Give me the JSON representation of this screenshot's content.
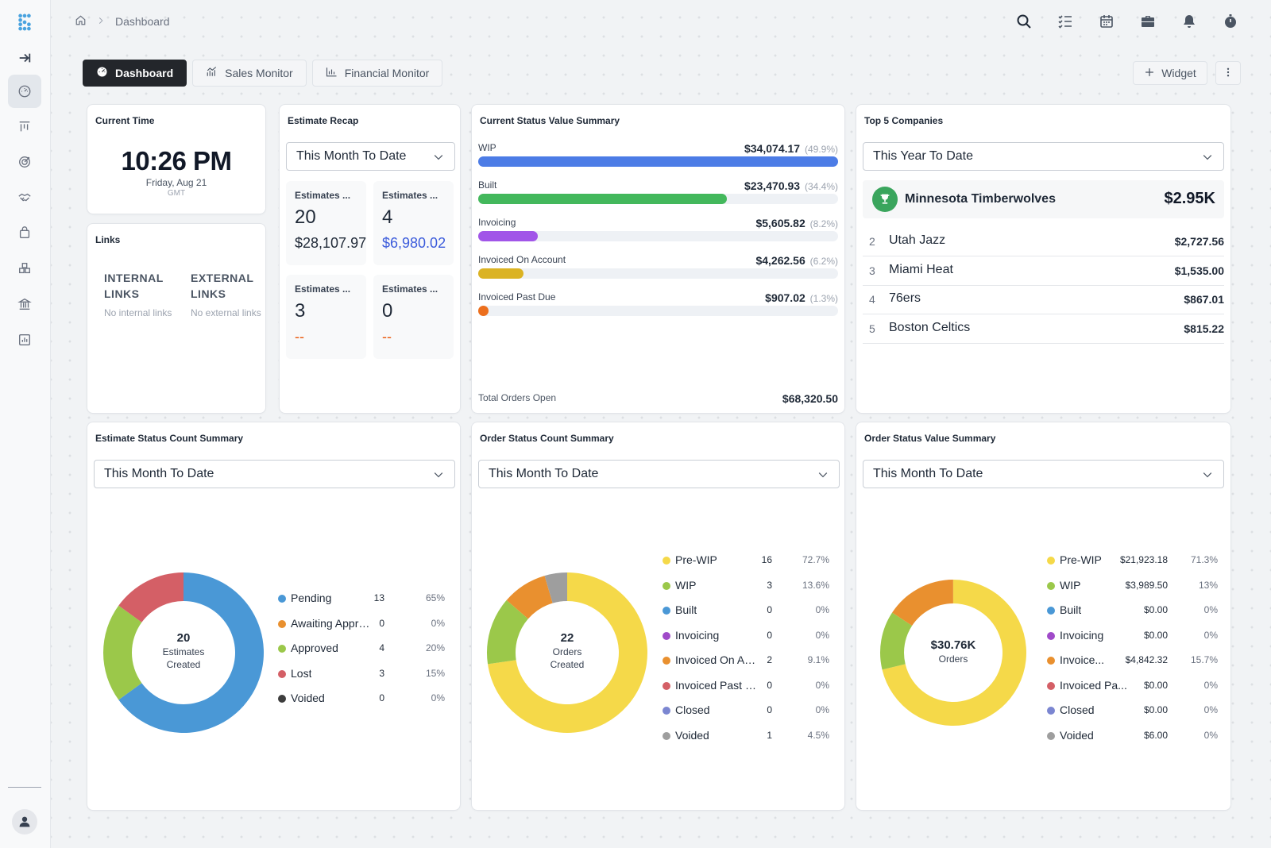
{
  "breadcrumb": {
    "page": "Dashboard"
  },
  "tabs": [
    {
      "label": "Dashboard",
      "icon": "dashboard-icon",
      "active": true
    },
    {
      "label": "Sales Monitor",
      "icon": "sales-chart-icon"
    },
    {
      "label": "Financial Monitor",
      "icon": "bar-chart-icon"
    }
  ],
  "actions": {
    "add_widget": "Widget"
  },
  "current_time": {
    "title": "Current Time",
    "time": "10:26 PM",
    "date": "Friday, Aug 21",
    "tz": "GMT"
  },
  "links": {
    "title": "Links",
    "internal_head": "INTERNAL LINKS",
    "internal_empty": "No internal links",
    "external_head": "EXTERNAL LINKS",
    "external_empty": "No external links"
  },
  "estimate_recap": {
    "title": "Estimate Recap",
    "period": "This Month To Date",
    "boxes": [
      {
        "label": "Estimates ...",
        "count": "20",
        "value": "$28,107.97"
      },
      {
        "label": "Estimates ...",
        "count": "4",
        "value": "$6,980.02"
      },
      {
        "label": "Estimates ...",
        "count": "3",
        "value": "--"
      },
      {
        "label": "Estimates ...",
        "count": "0",
        "value": "--"
      }
    ]
  },
  "status_value": {
    "title": "Current Status Value Summary",
    "rows": [
      {
        "label": "WIP",
        "amount": "$34,074.17",
        "pct": "(49.9%)",
        "fraction": 1.0,
        "color": "#4c7ce6"
      },
      {
        "label": "Built",
        "amount": "$23,470.93",
        "pct": "(34.4%)",
        "fraction": 0.69,
        "color": "#43b85c"
      },
      {
        "label": "Invoicing",
        "amount": "$5,605.82",
        "pct": "(8.2%)",
        "fraction": 0.165,
        "color": "#a155e8"
      },
      {
        "label": "Invoiced On Account",
        "amount": "$4,262.56",
        "pct": "(6.2%)",
        "fraction": 0.125,
        "color": "#dbb323"
      },
      {
        "label": "Invoiced Past Due",
        "amount": "$907.02",
        "pct": "(1.3%)",
        "fraction": 0.026,
        "color": "#ec6f1d"
      }
    ],
    "total_label": "Total Orders Open",
    "total_amount": "$68,320.50"
  },
  "top_companies": {
    "title": "Top 5 Companies",
    "period": "This Year To Date",
    "first": {
      "name": "Minnesota Timberwolves",
      "value": "$2.95K"
    },
    "rest": [
      {
        "rank": "2",
        "name": "Utah Jazz",
        "value": "$2,727.56"
      },
      {
        "rank": "3",
        "name": "Miami Heat",
        "value": "$1,535.00"
      },
      {
        "rank": "4",
        "name": "76ers",
        "value": "$867.01"
      },
      {
        "rank": "5",
        "name": "Boston Celtics",
        "value": "$815.22"
      }
    ]
  },
  "estimate_status": {
    "title": "Estimate Status Count Summary",
    "period": "This Month To Date",
    "center_num": "20",
    "center_l1": "Estimates",
    "center_l2": "Created",
    "legend": [
      {
        "label": "Pending",
        "count": "13",
        "pct": "65%",
        "color": "#4a98d6"
      },
      {
        "label": "Awaiting Appro...",
        "count": "0",
        "pct": "0%",
        "color": "#e9902f"
      },
      {
        "label": "Approved",
        "count": "4",
        "pct": "20%",
        "color": "#9bc84a"
      },
      {
        "label": "Lost",
        "count": "3",
        "pct": "15%",
        "color": "#d45f66"
      },
      {
        "label": "Voided",
        "count": "0",
        "pct": "0%",
        "color": "#3d3d3d"
      }
    ]
  },
  "order_count": {
    "title": "Order Status Count Summary",
    "period": "This Month To Date",
    "center_num": "22",
    "center_l1": "Orders",
    "center_l2": "Created",
    "legend": [
      {
        "label": "Pre-WIP",
        "count": "16",
        "pct": "72.7%",
        "color": "#f5d949"
      },
      {
        "label": "WIP",
        "count": "3",
        "pct": "13.6%",
        "color": "#9bc84a"
      },
      {
        "label": "Built",
        "count": "0",
        "pct": "0%",
        "color": "#4a98d6"
      },
      {
        "label": "Invoicing",
        "count": "0",
        "pct": "0%",
        "color": "#a04ac9"
      },
      {
        "label": "Invoiced On Ac...",
        "count": "2",
        "pct": "9.1%",
        "color": "#e9902f"
      },
      {
        "label": "Invoiced Past D...",
        "count": "0",
        "pct": "0%",
        "color": "#d45f66"
      },
      {
        "label": "Closed",
        "count": "0",
        "pct": "0%",
        "color": "#7b86d1"
      },
      {
        "label": "Voided",
        "count": "1",
        "pct": "4.5%",
        "color": "#9e9e9e"
      }
    ]
  },
  "order_value": {
    "title": "Order Status Value Summary",
    "period": "This Month To Date",
    "center_num": "$30.76K",
    "center_l1": "Orders",
    "legend": [
      {
        "label": "Pre-WIP",
        "count": "$21,923.18",
        "pct": "71.3%",
        "color": "#f5d949"
      },
      {
        "label": "WIP",
        "count": "$3,989.50",
        "pct": "13%",
        "color": "#9bc84a"
      },
      {
        "label": "Built",
        "count": "$0.00",
        "pct": "0%",
        "color": "#4a98d6"
      },
      {
        "label": "Invoicing",
        "count": "$0.00",
        "pct": "0%",
        "color": "#a04ac9"
      },
      {
        "label": "Invoice...",
        "count": "$4,842.32",
        "pct": "15.7%",
        "color": "#e9902f"
      },
      {
        "label": "Invoiced Pa...",
        "count": "$0.00",
        "pct": "0%",
        "color": "#d45f66"
      },
      {
        "label": "Closed",
        "count": "$0.00",
        "pct": "0%",
        "color": "#7b86d1"
      },
      {
        "label": "Voided",
        "count": "$6.00",
        "pct": "0%",
        "color": "#9e9e9e"
      }
    ]
  },
  "chart_data": [
    {
      "type": "pie",
      "title": "Estimate Status Count Summary",
      "categories": [
        "Pending",
        "Awaiting Appro...",
        "Approved",
        "Lost",
        "Voided"
      ],
      "values": [
        13,
        0,
        4,
        3,
        0
      ],
      "colors": [
        "#4a98d6",
        "#e9902f",
        "#9bc84a",
        "#d45f66",
        "#3d3d3d"
      ]
    },
    {
      "type": "pie",
      "title": "Order Status Count Summary",
      "categories": [
        "Pre-WIP",
        "WIP",
        "Built",
        "Invoicing",
        "Invoiced On Ac...",
        "Invoiced Past D...",
        "Closed",
        "Voided"
      ],
      "values": [
        16,
        3,
        0,
        0,
        2,
        0,
        0,
        1
      ],
      "colors": [
        "#f5d949",
        "#9bc84a",
        "#4a98d6",
        "#a04ac9",
        "#e9902f",
        "#d45f66",
        "#7b86d1",
        "#9e9e9e"
      ]
    },
    {
      "type": "pie",
      "title": "Order Status Value Summary",
      "categories": [
        "Pre-WIP",
        "WIP",
        "Built",
        "Invoicing",
        "Invoice...",
        "Invoiced Pa...",
        "Closed",
        "Voided"
      ],
      "values": [
        21923.18,
        3989.5,
        0,
        0,
        4842.32,
        0,
        0,
        6.0
      ],
      "colors": [
        "#f5d949",
        "#9bc84a",
        "#4a98d6",
        "#a04ac9",
        "#e9902f",
        "#d45f66",
        "#7b86d1",
        "#9e9e9e"
      ]
    }
  ]
}
